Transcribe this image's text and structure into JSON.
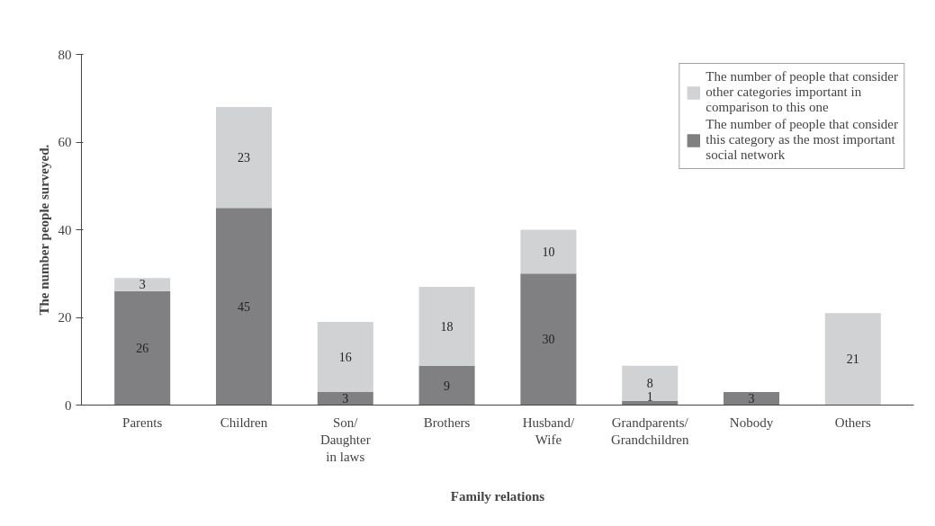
{
  "chart_data": {
    "type": "bar",
    "stacked": true,
    "xlabel": "Family relations",
    "ylabel": "The number people surveyed.",
    "categories": [
      "Parents",
      "Children",
      "Son/\nDaughter\nin laws",
      "Brothers",
      "Husband/\nWife",
      "Grandparents/\nGrandchildren",
      "Nobody",
      "Others"
    ],
    "series": [
      {
        "name": "The number of people that consider\nthis category as the most important\nsocial network",
        "color": "#808083",
        "values": [
          26,
          45,
          3,
          9,
          30,
          1,
          3,
          0
        ],
        "value_labels": [
          "26",
          "45",
          "3",
          "9",
          "30",
          "1",
          "3",
          null
        ]
      },
      {
        "name": "The number of people that consider\nother categories important in\ncomparison to this one",
        "color": "#d1d2d4",
        "values": [
          3,
          23,
          16,
          18,
          10,
          8,
          0,
          21
        ],
        "value_labels": [
          "3",
          "23",
          "16",
          "18",
          "10",
          "8",
          null,
          "21"
        ]
      }
    ],
    "ylim": [
      0,
      80
    ],
    "yticks": [
      0,
      20,
      40,
      60,
      80
    ],
    "grid": false,
    "legend": "top right"
  }
}
